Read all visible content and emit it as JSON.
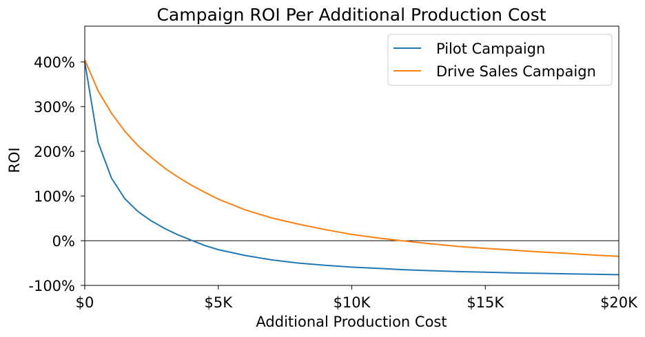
{
  "chart_data": {
    "type": "line",
    "title": "Campaign ROI Per Additional Production Cost",
    "xlabel": "Additional Production Cost",
    "ylabel": "ROI",
    "xlim": [
      0,
      20000
    ],
    "ylim": [
      -1.0,
      4.8
    ],
    "x_ticks": [
      {
        "value": 0,
        "label": "$0"
      },
      {
        "value": 5000,
        "label": "$5K"
      },
      {
        "value": 10000,
        "label": "$10K"
      },
      {
        "value": 15000,
        "label": "$15K"
      },
      {
        "value": 20000,
        "label": "$20K"
      }
    ],
    "y_ticks": [
      {
        "value": -1,
        "label": "-100%"
      },
      {
        "value": 0,
        "label": "0%"
      },
      {
        "value": 1,
        "label": "100%"
      },
      {
        "value": 2,
        "label": "200%"
      },
      {
        "value": 3,
        "label": "300%"
      },
      {
        "value": 4,
        "label": "400%"
      }
    ],
    "reference_line_y": 0,
    "legend_position": "top-right",
    "series": [
      {
        "name": "Pilot Campaign",
        "color": "#1f77b4",
        "x": [
          0,
          500,
          1000,
          1500,
          2000,
          2500,
          3000,
          3500,
          4000,
          4500,
          5000,
          6000,
          7000,
          8000,
          9000,
          10000,
          11000,
          12000,
          13000,
          14000,
          15000,
          16000,
          17000,
          18000,
          19000,
          20000
        ],
        "y": [
          4.0,
          2.2,
          1.4,
          0.94,
          0.65,
          0.44,
          0.27,
          0.13,
          0.01,
          -0.11,
          -0.2,
          -0.33,
          -0.43,
          -0.5,
          -0.55,
          -0.59,
          -0.62,
          -0.65,
          -0.67,
          -0.69,
          -0.705,
          -0.72,
          -0.73,
          -0.74,
          -0.75,
          -0.76
        ]
      },
      {
        "name": "Drive Sales Campaign",
        "color": "#ff7f0e",
        "x": [
          0,
          500,
          1000,
          1500,
          2000,
          2500,
          3000,
          3500,
          4000,
          4500,
          5000,
          6000,
          7000,
          8000,
          9000,
          10000,
          11000,
          12000,
          13000,
          14000,
          15000,
          16000,
          17000,
          18000,
          19000,
          20000
        ],
        "y": [
          4.05,
          3.35,
          2.85,
          2.45,
          2.12,
          1.86,
          1.62,
          1.42,
          1.24,
          1.08,
          0.93,
          0.69,
          0.51,
          0.37,
          0.25,
          0.14,
          0.06,
          -0.01,
          -0.07,
          -0.13,
          -0.17,
          -0.21,
          -0.25,
          -0.28,
          -0.32,
          -0.35
        ]
      }
    ]
  }
}
